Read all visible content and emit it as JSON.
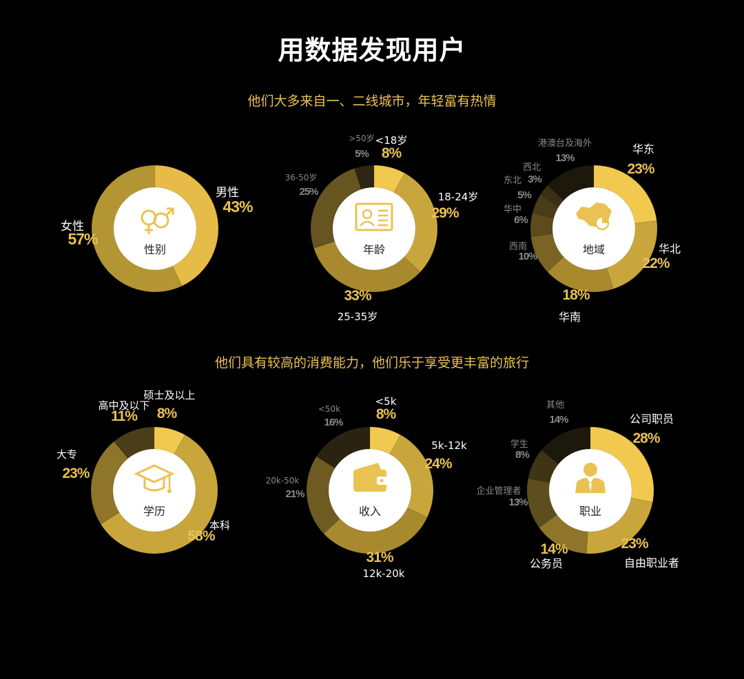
{
  "page": {
    "title": "用数据发现用户",
    "subtitle_top": "他们大多来自一、二线城市，年轻富有热情",
    "subtitle_bottom": "他们具有较高的消费能力，他们乐于享受更丰富的旅行"
  },
  "colors": {
    "background": "#000000",
    "accent": "#eac253",
    "center_fill": "#ffffff",
    "muted_label": "#8a8a8a"
  },
  "chart_data": [
    {
      "type": "pie",
      "center_label": "性别",
      "icon": "gender-icon",
      "slices": [
        {
          "label": "男性",
          "value": 43,
          "pct_text": "43%",
          "color": "#e6bb47"
        },
        {
          "label": "女性",
          "value": 57,
          "pct_text": "57%",
          "color": "#b39633"
        }
      ]
    },
    {
      "type": "pie",
      "center_label": "年龄",
      "icon": "id-card-icon",
      "slices": [
        {
          "label": "<18岁",
          "value": 8,
          "pct_text": "8%",
          "color": "#f1c94f"
        },
        {
          "label": "18-24岁",
          "value": 29,
          "pct_text": "29%",
          "color": "#c9a63b"
        },
        {
          "label": "25-35岁",
          "value": 33,
          "pct_text": "33%",
          "color": "#a8892e"
        },
        {
          "label": "36-50岁",
          "value": 25,
          "pct_text": "25%",
          "color": "#665521"
        },
        {
          "label": ">50岁",
          "value": 5,
          "pct_text": "5%",
          "color": "#2e2612"
        }
      ]
    },
    {
      "type": "pie",
      "center_label": "地域",
      "icon": "china-map-icon",
      "slices": [
        {
          "label": "华东",
          "value": 23,
          "pct_text": "23%",
          "color": "#f1c94f"
        },
        {
          "label": "华北",
          "value": 22,
          "pct_text": "22%",
          "color": "#c9a63b"
        },
        {
          "label": "华南",
          "value": 18,
          "pct_text": "18%",
          "color": "#a8892e"
        },
        {
          "label": "西南",
          "value": 10,
          "pct_text": "10%",
          "color": "#7a6424"
        },
        {
          "label": "华中",
          "value": 6,
          "pct_text": "6%",
          "color": "#5c4c1d"
        },
        {
          "label": "东北",
          "value": 5,
          "pct_text": "5%",
          "color": "#493d19"
        },
        {
          "label": "西北",
          "value": 3,
          "pct_text": "3%",
          "color": "#3a3115"
        },
        {
          "label": "港澳台及海外",
          "value": 13,
          "pct_text": "13%",
          "color": "#1c180c"
        }
      ]
    },
    {
      "type": "pie",
      "center_label": "学历",
      "icon": "graduation-cap-icon",
      "slices": [
        {
          "label": "硕士及以上",
          "value": 8,
          "pct_text": "8%",
          "color": "#f1c94f"
        },
        {
          "label": "本科",
          "value": 58,
          "pct_text": "58%",
          "color": "#c9a63b"
        },
        {
          "label": "大专",
          "value": 23,
          "pct_text": "23%",
          "color": "#8f7529"
        },
        {
          "label": "高中及以下",
          "value": 11,
          "pct_text": "11%",
          "color": "#4a3e19"
        }
      ]
    },
    {
      "type": "pie",
      "center_label": "收入",
      "icon": "wallet-icon",
      "slices": [
        {
          "label": "<5k",
          "value": 8,
          "pct_text": "8%",
          "color": "#f1c94f"
        },
        {
          "label": "5k-12k",
          "value": 24,
          "pct_text": "24%",
          "color": "#c9a63b"
        },
        {
          "label": "12k-20k",
          "value": 31,
          "pct_text": "31%",
          "color": "#a8892e"
        },
        {
          "label": "20k-50k",
          "value": 21,
          "pct_text": "21%",
          "color": "#6e5b22"
        },
        {
          "label": "<50k",
          "value": 16,
          "pct_text": "16%",
          "color": "#2a2311"
        }
      ]
    },
    {
      "type": "pie",
      "center_label": "职业",
      "icon": "employee-icon",
      "slices": [
        {
          "label": "公司职员",
          "value": 28,
          "pct_text": "28%",
          "color": "#f1c94f"
        },
        {
          "label": "自由职业者",
          "value": 23,
          "pct_text": "23%",
          "color": "#c9a63b"
        },
        {
          "label": "公务员",
          "value": 14,
          "pct_text": "14%",
          "color": "#8f7529"
        },
        {
          "label": "企业管理者",
          "value": 13,
          "pct_text": "13%",
          "color": "#5e4e1e"
        },
        {
          "label": "学生",
          "value": 8,
          "pct_text": "8%",
          "color": "#3f3516"
        },
        {
          "label": "其他",
          "value": 14,
          "pct_text": "14%",
          "color": "#1c180c"
        }
      ]
    }
  ]
}
